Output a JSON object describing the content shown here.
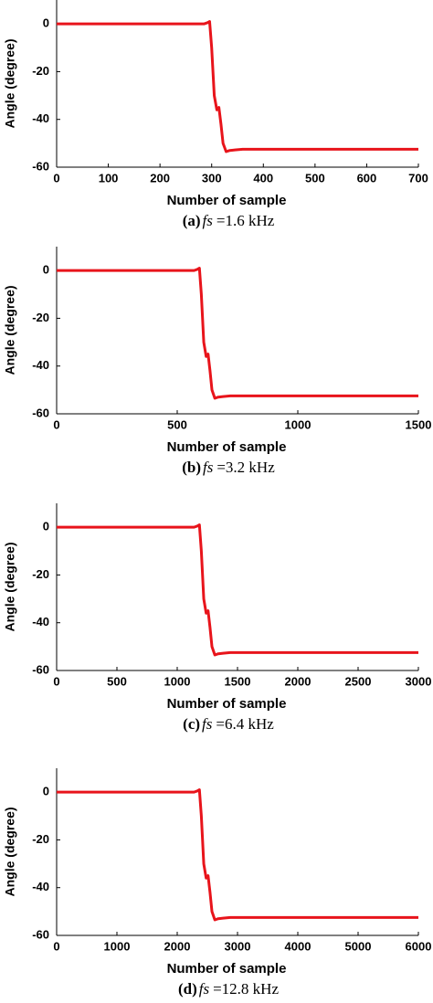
{
  "chart_data": [
    {
      "type": "line",
      "ylabel": "Angle (degree)",
      "xlabel": "Number of sample",
      "caption": {
        "label": "(a)",
        "symbol": "fs",
        "text": "=1.6 kHz"
      },
      "x": [
        0,
        285,
        292,
        296,
        300,
        305,
        310,
        314,
        318,
        322,
        328,
        335,
        345,
        360,
        380,
        700
      ],
      "values": [
        0,
        0,
        0.5,
        1,
        -10,
        -30,
        -36,
        -35,
        -42,
        -50,
        -53.5,
        -53,
        -52.8,
        -52.5,
        -52.5,
        -52.5
      ],
      "color": "#e8141b",
      "xlim": [
        0,
        700
      ],
      "ylim": [
        -60,
        10
      ],
      "xticks": [
        0,
        100,
        200,
        300,
        400,
        500,
        600,
        700
      ],
      "yticks": [
        -60,
        -40,
        -20,
        0
      ]
    },
    {
      "type": "line",
      "ylabel": "Angle (degree)",
      "xlabel": "Number of sample",
      "caption": {
        "label": "(b)",
        "symbol": "fs",
        "text": "=3.2 kHz"
      },
      "x": [
        0,
        570,
        584,
        592,
        600,
        610,
        620,
        628,
        636,
        644,
        656,
        670,
        690,
        720,
        760,
        1500
      ],
      "values": [
        0,
        0,
        0.5,
        1,
        -10,
        -30,
        -36,
        -35,
        -42,
        -50,
        -53.5,
        -53,
        -52.8,
        -52.5,
        -52.5,
        -52.5
      ],
      "color": "#e8141b",
      "xlim": [
        0,
        1500
      ],
      "ylim": [
        -60,
        10
      ],
      "xticks": [
        0,
        500,
        1000,
        1500
      ],
      "yticks": [
        -60,
        -40,
        -20,
        0
      ]
    },
    {
      "type": "line",
      "ylabel": "Angle (degree)",
      "xlabel": "Number of sample",
      "caption": {
        "label": "(c)",
        "symbol": "fs",
        "text": "=6.4 kHz"
      },
      "x": [
        0,
        1140,
        1168,
        1184,
        1200,
        1220,
        1240,
        1256,
        1272,
        1288,
        1312,
        1340,
        1380,
        1440,
        1520,
        3000
      ],
      "values": [
        0,
        0,
        0.5,
        1,
        -10,
        -30,
        -36,
        -35,
        -42,
        -50,
        -53.5,
        -53,
        -52.8,
        -52.5,
        -52.5,
        -52.5
      ],
      "color": "#e8141b",
      "xlim": [
        0,
        3000
      ],
      "ylim": [
        -60,
        10
      ],
      "xticks": [
        0,
        500,
        1000,
        1500,
        2000,
        2500,
        3000
      ],
      "yticks": [
        -60,
        -40,
        -20,
        0
      ]
    },
    {
      "type": "line",
      "ylabel": "Angle (degree)",
      "xlabel": "Number of sample",
      "caption": {
        "label": "(d)",
        "symbol": "fs",
        "text": "=12.8 kHz"
      },
      "x": [
        0,
        2280,
        2336,
        2368,
        2400,
        2440,
        2480,
        2512,
        2544,
        2576,
        2624,
        2680,
        2760,
        2880,
        3040,
        6000
      ],
      "values": [
        0,
        0,
        0.5,
        1,
        -10,
        -30,
        -36,
        -35,
        -42,
        -50,
        -53.5,
        -53,
        -52.8,
        -52.5,
        -52.5,
        -52.5
      ],
      "color": "#e8141b",
      "xlim": [
        0,
        6000
      ],
      "ylim": [
        -60,
        10
      ],
      "xticks": [
        0,
        1000,
        2000,
        3000,
        4000,
        5000,
        6000
      ],
      "yticks": [
        -60,
        -40,
        -20,
        0
      ]
    }
  ]
}
